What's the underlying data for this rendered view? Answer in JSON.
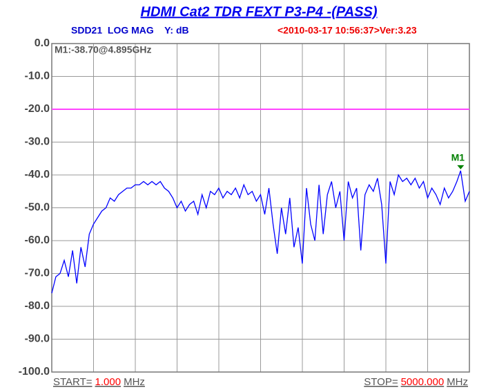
{
  "chart_data": {
    "type": "line",
    "title": "HDMI Cat2 TDR FEXT P3-P4 -(PASS)",
    "subtitle_left": "SDD21  LOG MAG    Y: dB",
    "subtitle_right": "<2010-03-17 10:56:37>Ver:3.23",
    "start_label": "START=",
    "stop_label": "STOP=",
    "x_unit": "MHz",
    "xlim": [
      1,
      5000
    ],
    "xticks": [
      {
        "value": 1,
        "label": "1.000"
      },
      {
        "value": 5000,
        "label": "5000.000"
      }
    ],
    "ylim": [
      -100,
      0
    ],
    "yticks": [
      {
        "value": 0,
        "label": "0.0"
      },
      {
        "value": -10,
        "label": "-10.0"
      },
      {
        "value": -20,
        "label": "-20.0"
      },
      {
        "value": -30,
        "label": "-30.0"
      },
      {
        "value": -40,
        "label": "-40.0"
      },
      {
        "value": -50,
        "label": "-50.0"
      },
      {
        "value": -60,
        "label": "-60.0"
      },
      {
        "value": -70,
        "label": "-70.0"
      },
      {
        "value": -80,
        "label": "-80.0"
      },
      {
        "value": -90,
        "label": "-90.0"
      },
      {
        "value": -100,
        "label": "-100.0"
      }
    ],
    "grid": true,
    "limit_line": {
      "value": -20,
      "color": "#ff44ff"
    },
    "marker": {
      "label": "M1",
      "readout": "M1:-38.70@4.895GHz",
      "x": 4895,
      "y": -38.7,
      "color": "#008000"
    },
    "series": [
      {
        "name": "SDD21",
        "color": "#0000ff",
        "x": [
          1,
          50,
          100,
          150,
          200,
          250,
          300,
          350,
          400,
          450,
          500,
          550,
          600,
          650,
          700,
          750,
          800,
          850,
          900,
          950,
          1000,
          1050,
          1100,
          1150,
          1200,
          1250,
          1300,
          1350,
          1400,
          1450,
          1500,
          1550,
          1600,
          1650,
          1700,
          1750,
          1800,
          1850,
          1900,
          1950,
          2000,
          2050,
          2100,
          2150,
          2200,
          2250,
          2300,
          2350,
          2400,
          2450,
          2500,
          2550,
          2600,
          2650,
          2700,
          2750,
          2800,
          2850,
          2900,
          2950,
          3000,
          3050,
          3100,
          3150,
          3200,
          3250,
          3300,
          3350,
          3400,
          3450,
          3500,
          3550,
          3600,
          3650,
          3700,
          3750,
          3800,
          3850,
          3900,
          3950,
          4000,
          4050,
          4100,
          4150,
          4200,
          4250,
          4300,
          4350,
          4400,
          4450,
          4500,
          4550,
          4600,
          4650,
          4700,
          4750,
          4800,
          4850,
          4895,
          4950,
          5000
        ],
        "values": [
          -76,
          -71,
          -70,
          -66,
          -71,
          -63,
          -73,
          -62,
          -68,
          -58,
          -55,
          -53,
          -51,
          -50,
          -47,
          -48,
          -46,
          -45,
          -44,
          -44,
          -43,
          -43,
          -42,
          -43,
          -42,
          -43,
          -42,
          -44,
          -45,
          -47,
          -50,
          -48,
          -51,
          -49,
          -48,
          -52,
          -46,
          -50,
          -45,
          -46,
          -44,
          -47,
          -45,
          -46,
          -44,
          -47,
          -43,
          -46,
          -45,
          -48,
          -46,
          -52,
          -44,
          -55,
          -64,
          -50,
          -58,
          -47,
          -62,
          -56,
          -67,
          -44,
          -55,
          -60,
          -43,
          -58,
          -46,
          -42,
          -50,
          -45,
          -60,
          -42,
          -47,
          -44,
          -63,
          -46,
          -43,
          -45,
          -41,
          -49,
          -67,
          -42,
          -46,
          -40,
          -42,
          -41,
          -43,
          -41,
          -44,
          -42,
          -47,
          -44,
          -46,
          -49,
          -44,
          -47,
          -45,
          -42,
          -38.7,
          -48,
          -45
        ]
      }
    ]
  }
}
